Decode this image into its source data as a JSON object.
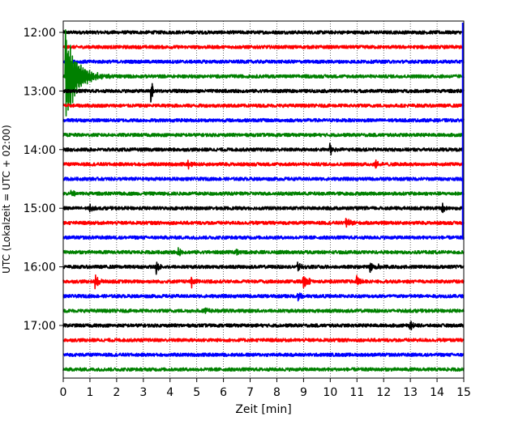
{
  "chart_data": {
    "type": "line",
    "xlabel": "Zeit  [min]",
    "ylabel": "UTC (Lokalzeit = UTC + 02:00)",
    "xlim": [
      0,
      15
    ],
    "x_ticks": [
      "0",
      "1",
      "2",
      "3",
      "4",
      "5",
      "6",
      "7",
      "8",
      "9",
      "10",
      "11",
      "12",
      "13",
      "14",
      "15"
    ],
    "y_ticks": [
      {
        "label": "12:00",
        "trace_index": 0
      },
      {
        "label": "13:00",
        "trace_index": 4
      },
      {
        "label": "14:00",
        "trace_index": 8
      },
      {
        "label": "15:00",
        "trace_index": 12
      },
      {
        "label": "16:00",
        "trace_index": 16
      },
      {
        "label": "17:00",
        "trace_index": 20
      }
    ],
    "grid": "vertical dotted",
    "trace_colors": [
      "#000000",
      "#ff0000",
      "#0000ff",
      "#008000"
    ],
    "traces": [
      {
        "start": "12:00",
        "events": []
      },
      {
        "start": "12:15",
        "events": []
      },
      {
        "start": "12:30",
        "events": []
      },
      {
        "start": "12:45",
        "events": [
          {
            "t": 0.1,
            "amp": 3.5,
            "decay": 0.4
          }
        ]
      },
      {
        "start": "13:00",
        "events": [
          {
            "t": 3.3,
            "amp": 1.3,
            "decay": 0.04
          }
        ]
      },
      {
        "start": "13:15",
        "events": []
      },
      {
        "start": "13:30",
        "events": []
      },
      {
        "start": "13:45",
        "events": []
      },
      {
        "start": "14:00",
        "events": [
          {
            "t": 10.0,
            "amp": 0.4,
            "decay": 0.1
          }
        ]
      },
      {
        "start": "14:15",
        "events": [
          {
            "t": 4.7,
            "amp": 0.3,
            "decay": 0.1
          },
          {
            "t": 11.7,
            "amp": 0.35,
            "decay": 0.15
          }
        ]
      },
      {
        "start": "14:30",
        "events": []
      },
      {
        "start": "14:45",
        "events": [
          {
            "t": 0.3,
            "amp": 0.3,
            "decay": 0.1
          }
        ]
      },
      {
        "start": "15:00",
        "events": [
          {
            "t": 1.0,
            "amp": 0.3,
            "decay": 0.1
          },
          {
            "t": 14.2,
            "amp": 0.35,
            "decay": 0.1
          }
        ]
      },
      {
        "start": "15:15",
        "events": [
          {
            "t": 10.6,
            "amp": 0.35,
            "decay": 0.15
          }
        ]
      },
      {
        "start": "15:30",
        "events": []
      },
      {
        "start": "15:45",
        "events": [
          {
            "t": 4.3,
            "amp": 0.3,
            "decay": 0.1
          },
          {
            "t": 6.5,
            "amp": 0.35,
            "decay": 0.05
          }
        ]
      },
      {
        "start": "16:00",
        "events": [
          {
            "t": 3.5,
            "amp": 0.45,
            "decay": 0.1
          },
          {
            "t": 8.8,
            "amp": 0.4,
            "decay": 0.1
          },
          {
            "t": 11.5,
            "amp": 0.45,
            "decay": 0.2
          }
        ]
      },
      {
        "start": "16:15",
        "events": [
          {
            "t": 1.2,
            "amp": 0.5,
            "decay": 0.15
          },
          {
            "t": 4.8,
            "amp": 0.4,
            "decay": 0.1
          },
          {
            "t": 9.0,
            "amp": 0.6,
            "decay": 0.15
          },
          {
            "t": 11.0,
            "amp": 0.45,
            "decay": 0.1
          }
        ]
      },
      {
        "start": "16:30",
        "events": [
          {
            "t": 8.8,
            "amp": 0.3,
            "decay": 0.1
          }
        ]
      },
      {
        "start": "16:45",
        "events": [
          {
            "t": 5.3,
            "amp": 0.3,
            "decay": 0.1
          }
        ]
      },
      {
        "start": "17:00",
        "events": [
          {
            "t": 13.0,
            "amp": 0.35,
            "decay": 0.1
          }
        ]
      },
      {
        "start": "17:15",
        "events": []
      },
      {
        "start": "17:30",
        "events": []
      },
      {
        "start": "17:45",
        "events": []
      }
    ]
  }
}
